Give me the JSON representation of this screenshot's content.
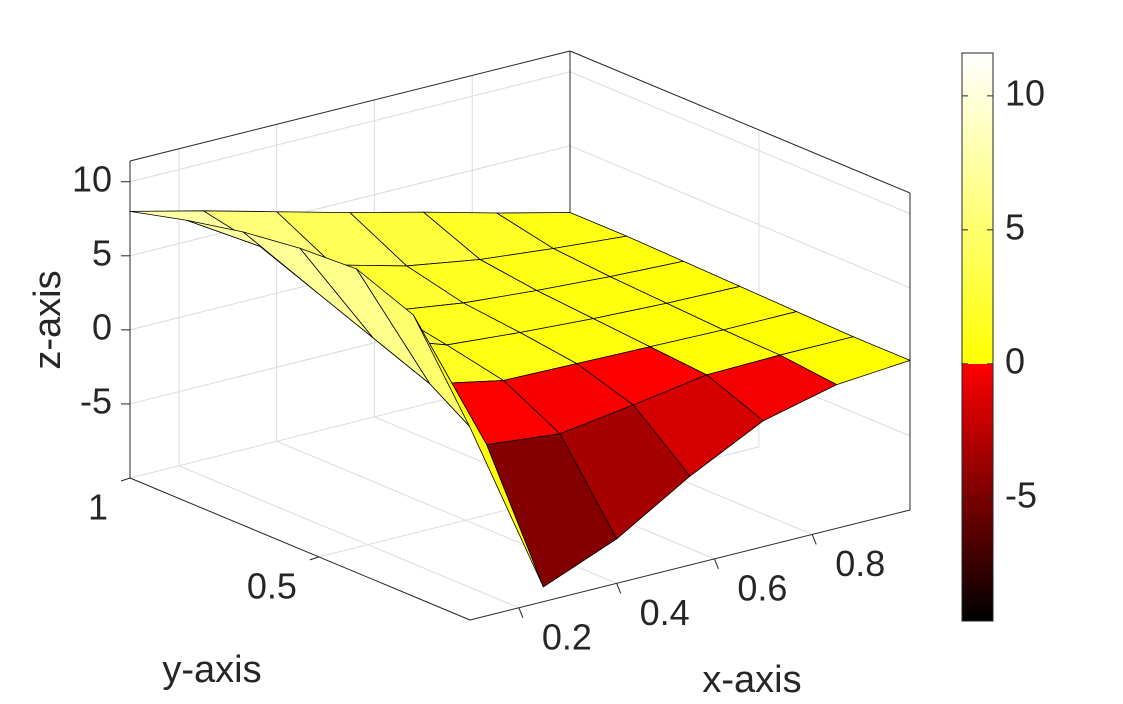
{
  "chart_data": {
    "type": "surface",
    "xlabel": "x-axis",
    "ylabel": "y-axis",
    "zlabel": "z-axis",
    "x": [
      0.1,
      0.25,
      0.4,
      0.55,
      0.7,
      0.85,
      1.0
    ],
    "y": [
      0.1,
      0.25,
      0.4,
      0.55,
      0.7,
      0.85,
      1.0
    ],
    "z": [
      [
        3,
        -9,
        -7,
        -4,
        -1.5,
        -0.3,
        0.1
      ],
      [
        9,
        -1,
        -1.5,
        -0.8,
        0,
        0.1,
        0.1
      ],
      [
        10.5,
        1.5,
        0.5,
        0.4,
        0.3,
        0.2,
        0.2
      ],
      [
        10.3,
        3,
        1.3,
        0.9,
        0.6,
        0.4,
        0.3
      ],
      [
        9.8,
        4.5,
        2,
        1.3,
        0.9,
        0.6,
        0.4
      ],
      [
        9,
        6,
        3.5,
        2.2,
        1.4,
        0.9,
        0.5
      ],
      [
        8,
        6.8,
        5.5,
        4.2,
        3,
        1.7,
        0.5
      ]
    ],
    "xlim": [
      0.1,
      1.0
    ],
    "ylim": [
      0.1,
      1.0
    ],
    "zlim": [
      -10,
      11.4
    ],
    "xticks": [
      0.2,
      0.4,
      0.6,
      0.8
    ],
    "yticks": [
      0.5,
      1
    ],
    "zticks": [
      -5,
      0,
      5,
      10
    ],
    "grid": true,
    "box": true,
    "edge_color": "#000000",
    "colormap_below_zero": [
      "#000000",
      "#ff0000"
    ],
    "colormap_above_zero": [
      "#ffff00",
      "#ffffff"
    ],
    "colorbar": {
      "clim": [
        -9.6,
        11.6
      ],
      "ticks": [
        -5,
        0,
        5,
        10
      ]
    }
  }
}
